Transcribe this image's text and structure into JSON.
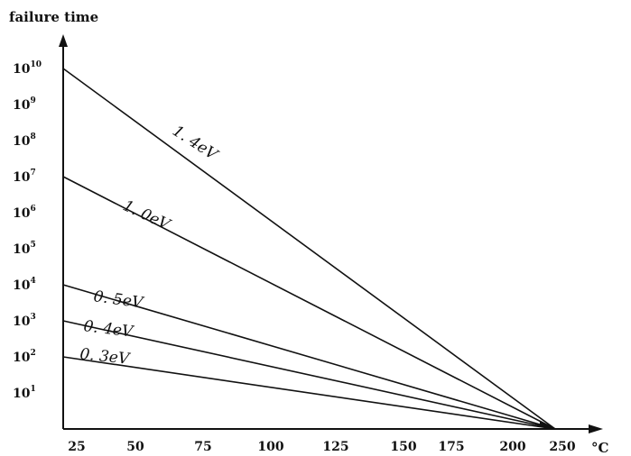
{
  "chart_data": {
    "type": "line",
    "ylabel": "failure time",
    "xunit": "°C",
    "yscale": "log",
    "x_ticks": [
      "25",
      "50",
      "75",
      "100",
      "125",
      "150",
      "175",
      "200",
      "250"
    ],
    "y_ticks": [
      {
        "base": "10",
        "exp": "10",
        "value": 10000000000.0
      },
      {
        "base": "10",
        "exp": "9",
        "value": 1000000000.0
      },
      {
        "base": "10",
        "exp": "8",
        "value": 100000000.0
      },
      {
        "base": "10",
        "exp": "7",
        "value": 10000000.0
      },
      {
        "base": "10",
        "exp": "6",
        "value": 1000000.0
      },
      {
        "base": "10",
        "exp": "5",
        "value": 100000.0
      },
      {
        "base": "10",
        "exp": "4",
        "value": 10000.0
      },
      {
        "base": "10",
        "exp": "3",
        "value": 1000.0
      },
      {
        "base": "10",
        "exp": "2",
        "value": 100.0
      },
      {
        "base": "10",
        "exp": "1",
        "value": 10.0
      }
    ],
    "ylim": [
      1,
      10000000000.0
    ],
    "series": [
      {
        "name": "1. 4eV",
        "x": [
          25,
          220
        ],
        "y": [
          10000000000.0,
          1
        ]
      },
      {
        "name": "1. 0eV",
        "x": [
          25,
          220
        ],
        "y": [
          10000000.0,
          1
        ]
      },
      {
        "name": "0. 5eV",
        "x": [
          25,
          220
        ],
        "y": [
          10000.0,
          1
        ]
      },
      {
        "name": "0. 4eV",
        "x": [
          25,
          220
        ],
        "y": [
          1000.0,
          1
        ]
      },
      {
        "name": "0. 3eV",
        "x": [
          25,
          220
        ],
        "y": [
          100.0,
          1
        ]
      }
    ],
    "grid": false,
    "legend": "none"
  }
}
